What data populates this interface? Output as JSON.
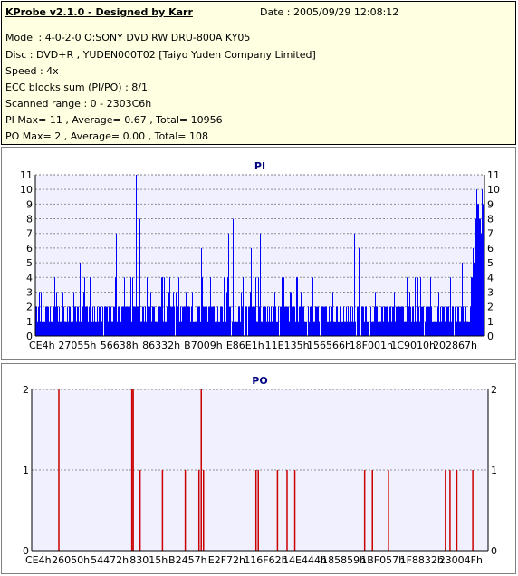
{
  "info": {
    "title": "KProbe v2.1.0 - Designed by Karr",
    "date": "Date : 2005/09/29 12:08:12",
    "model": "Model : 4-0-2-0 O:SONY    DVD RW DRU-800A  KY05",
    "disc": "Disc : DVD+R , YUDEN000T02 [Taiyo Yuden Company Limited]",
    "speed": "Speed : 4x",
    "ecc": "ECC blocks sum (PI/PO) : 8/1",
    "range": "Scanned range : 0 - 2303C6h",
    "pi_summary": "PI Max= 11 , Average= 0.67 , Total= 10956",
    "po_summary": "PO Max= 2 , Average= 0.00 , Total= 108"
  },
  "colors": {
    "pi": "#0000ff",
    "po": "#cc0000",
    "title": "#000080",
    "panel_bg": "#f0f0ff"
  },
  "chart_data": [
    {
      "type": "bar",
      "title": "PI",
      "ylim": [
        0,
        11
      ],
      "yticks": [
        0,
        1,
        2,
        3,
        4,
        5,
        6,
        7,
        8,
        9,
        10,
        11
      ],
      "grid": true,
      "xticks": [
        "CE4h",
        "27055h",
        "56638h",
        "86332h",
        "B7009h",
        "E86E1h",
        "11E135h",
        "156566h",
        "18F001h",
        "1C9010h",
        "202867h"
      ],
      "x_range": [
        "0h",
        "2303C6h"
      ],
      "baseline_level": 1,
      "base_max": 2,
      "spike_max": 4,
      "peaks": [
        {
          "x": 0.1,
          "y": 5
        },
        {
          "x": 0.18,
          "y": 7
        },
        {
          "x": 0.37,
          "y": 6
        },
        {
          "x": 0.38,
          "y": 6
        },
        {
          "x": 0.43,
          "y": 7
        },
        {
          "x": 0.71,
          "y": 7
        },
        {
          "x": 0.72,
          "y": 6
        },
        {
          "x": 0.88,
          "y": 4
        },
        {
          "x": 0.95,
          "y": 5
        },
        {
          "x": 0.97,
          "y": 4
        }
      ],
      "hotspots": [
        {
          "x": 0.225,
          "y": 11
        },
        {
          "x": 0.232,
          "y": 8
        },
        {
          "x": 0.44,
          "y": 8
        },
        {
          "x": 0.48,
          "y": 6
        },
        {
          "x": 0.5,
          "y": 7
        },
        {
          "x": 0.49,
          "y": 4
        },
        {
          "x": 0.55,
          "y": 4
        }
      ],
      "tail": {
        "start": 0.97,
        "values": [
          4,
          6,
          9,
          10,
          9,
          8,
          10
        ]
      }
    },
    {
      "type": "bar",
      "title": "PO",
      "ylim": [
        0,
        2
      ],
      "yticks": [
        0,
        1,
        2
      ],
      "grid": true,
      "xticks": [
        "CE4h",
        "26050h",
        "54472h",
        "83015h",
        "B2457h",
        "E2F72h",
        "116F62h",
        "14E444h",
        "185859h",
        "1BF057h",
        "1F8832h",
        "23004Fh"
      ],
      "x_range": [
        "0h",
        "2303C6h"
      ],
      "spikes": [
        {
          "x": 0.058,
          "y": 2
        },
        {
          "x": 0.218,
          "y": 2
        },
        {
          "x": 0.221,
          "y": 2
        },
        {
          "x": 0.236,
          "y": 1
        },
        {
          "x": 0.285,
          "y": 1
        },
        {
          "x": 0.335,
          "y": 1
        },
        {
          "x": 0.365,
          "y": 1
        },
        {
          "x": 0.37,
          "y": 2
        },
        {
          "x": 0.375,
          "y": 1
        },
        {
          "x": 0.49,
          "y": 1
        },
        {
          "x": 0.495,
          "y": 1
        },
        {
          "x": 0.537,
          "y": 1
        },
        {
          "x": 0.558,
          "y": 1
        },
        {
          "x": 0.575,
          "y": 1
        },
        {
          "x": 0.728,
          "y": 1
        },
        {
          "x": 0.745,
          "y": 1
        },
        {
          "x": 0.78,
          "y": 1
        },
        {
          "x": 0.905,
          "y": 1
        },
        {
          "x": 0.915,
          "y": 1
        },
        {
          "x": 0.93,
          "y": 1
        },
        {
          "x": 0.965,
          "y": 1
        }
      ]
    }
  ]
}
